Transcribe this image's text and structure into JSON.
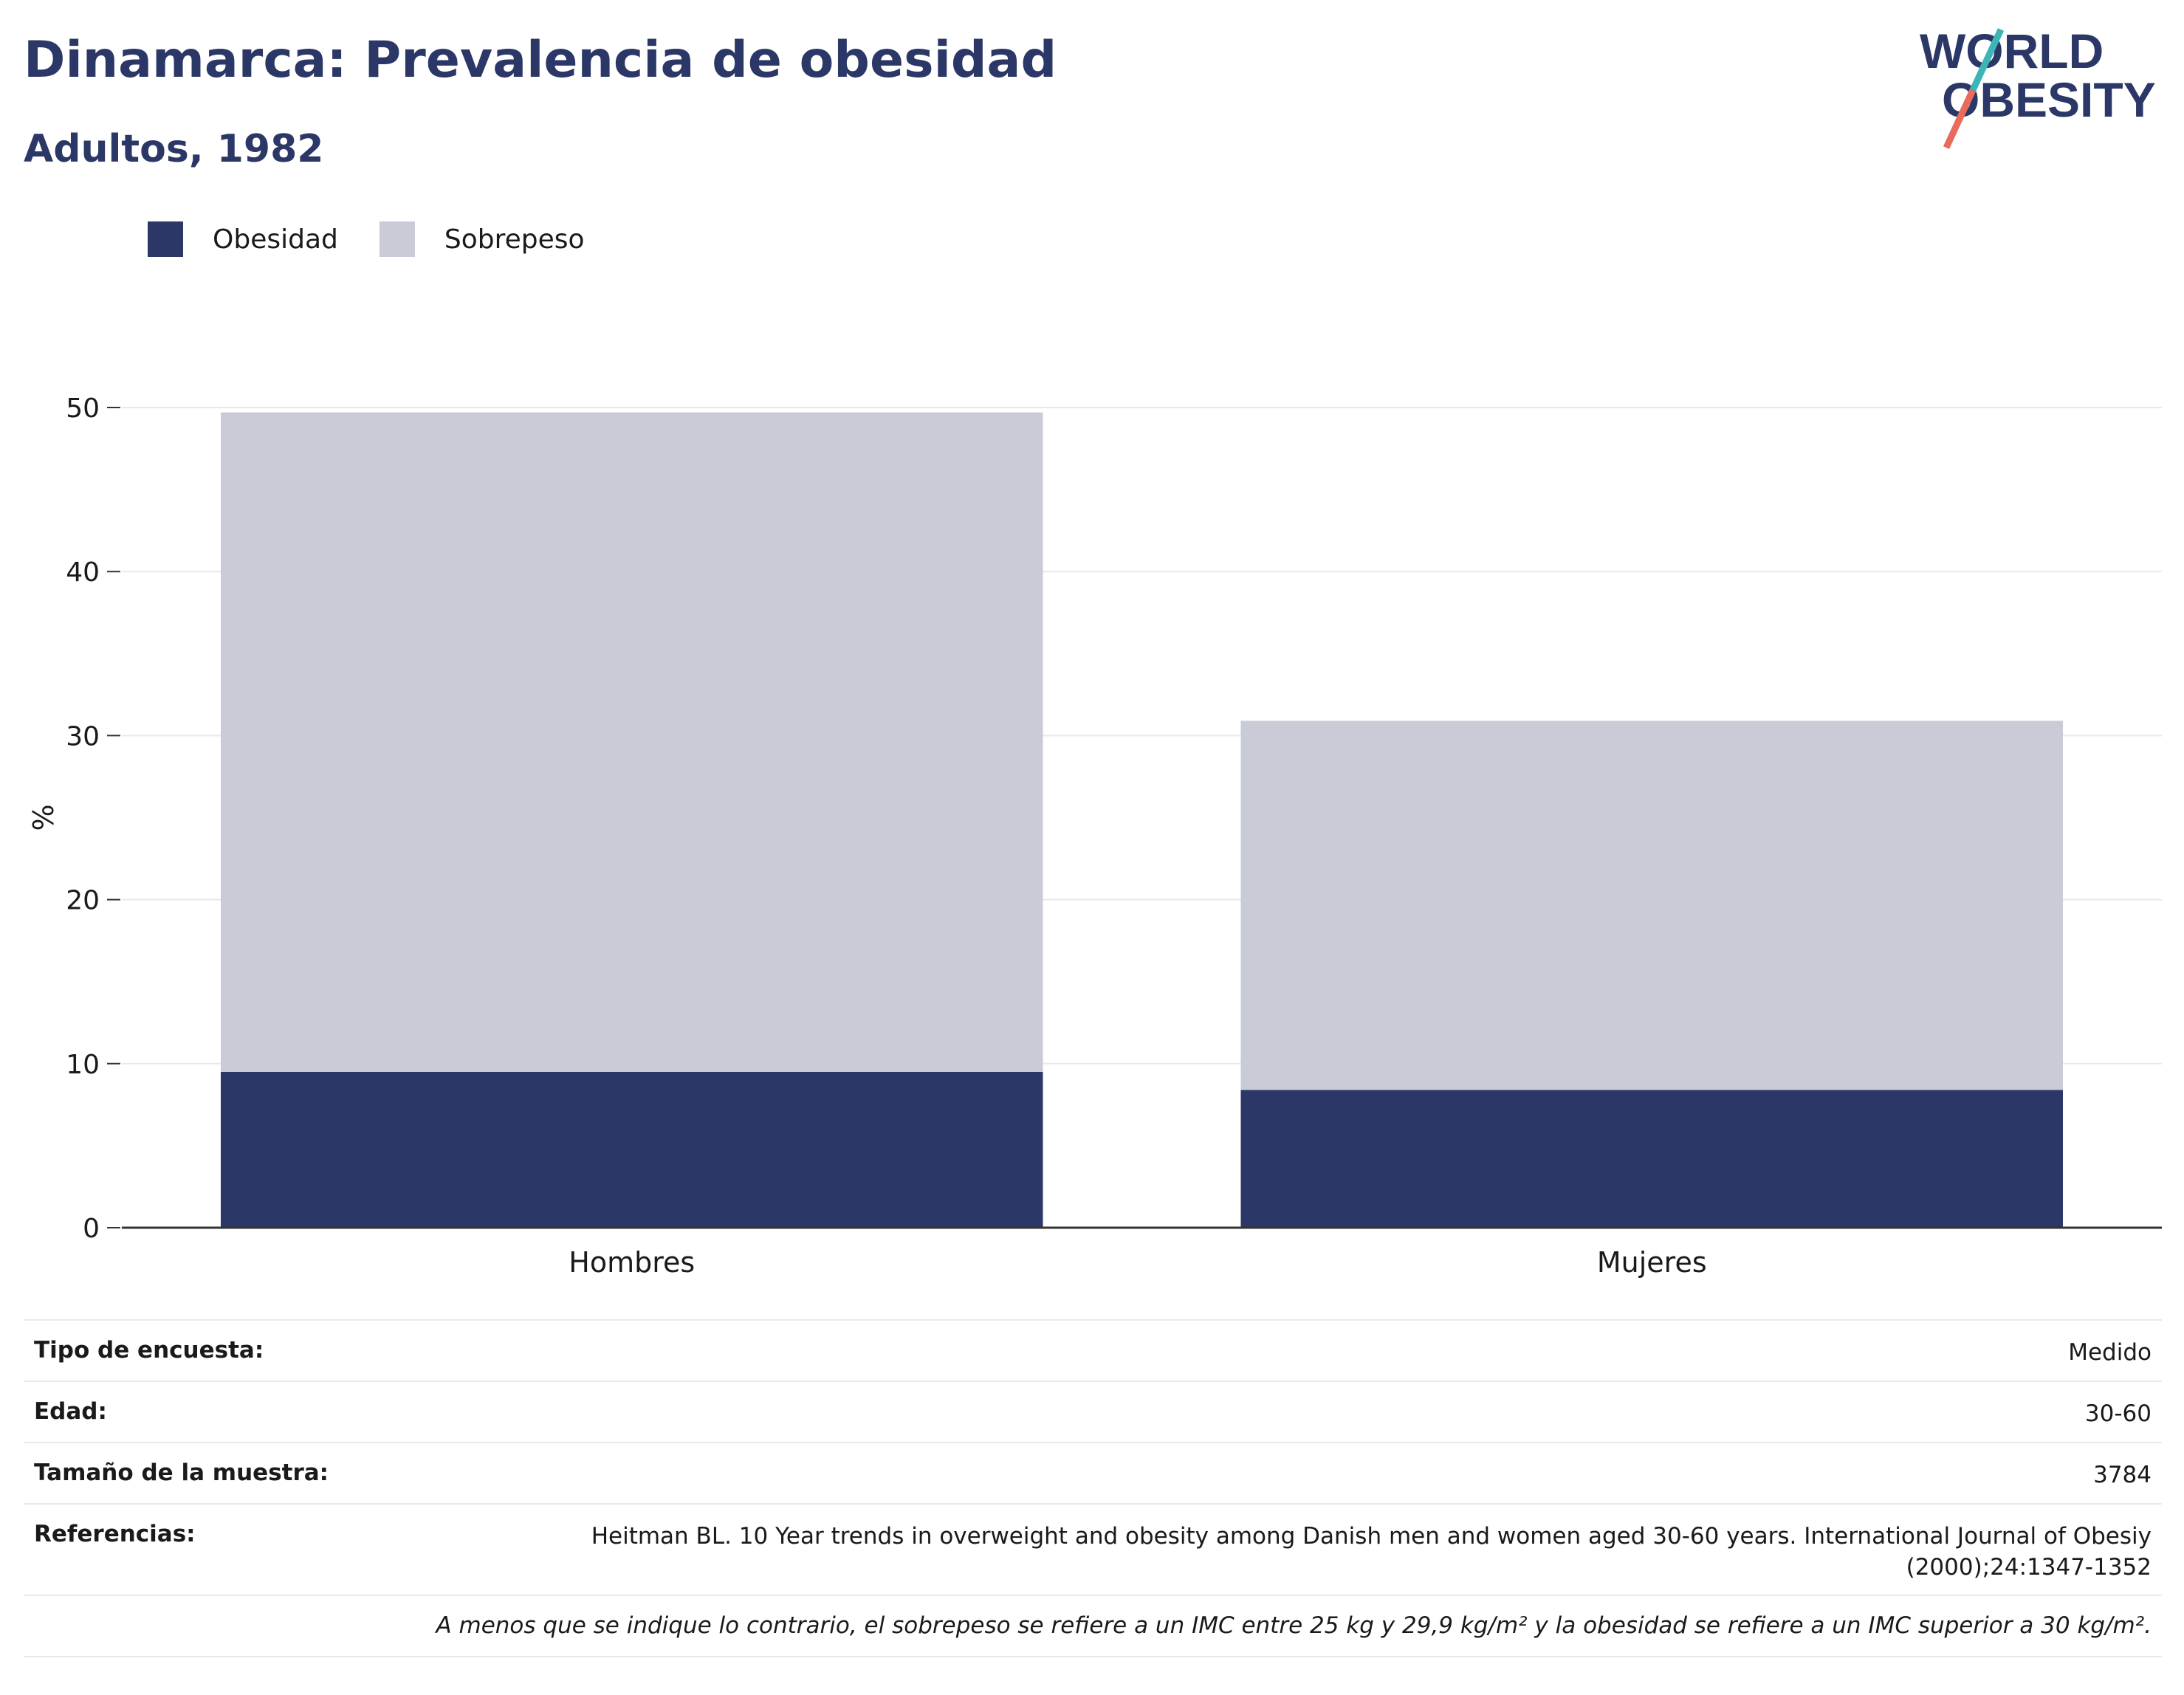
{
  "header": {
    "title": "Dinamarca: Prevalencia de obesidad",
    "subtitle": "Adultos, 1982"
  },
  "logo": {
    "line1": "WORLD",
    "line2": "OBESITY",
    "colors": {
      "text": "#2b3766",
      "slash_top": "#3bb5b5",
      "slash_bottom": "#e86b5c"
    }
  },
  "legend": [
    {
      "label": "Obesidad",
      "color": "#2b3766"
    },
    {
      "label": "Sobrepeso",
      "color": "#c9cbd7"
    }
  ],
  "chart_data": {
    "type": "bar",
    "stacked": true,
    "categories": [
      "Hombres",
      "Mujeres"
    ],
    "series": [
      {
        "name": "Obesidad",
        "color": "#2b3766",
        "values": [
          9.5,
          8.4
        ]
      },
      {
        "name": "Sobrepeso",
        "color": "#c9cbd7",
        "values": [
          40.2,
          22.5
        ]
      }
    ],
    "ylabel": "%",
    "ylim": [
      0,
      50
    ],
    "yticks": [
      0,
      10,
      20,
      30,
      40,
      50
    ],
    "grid": true,
    "legend_position": "top-left"
  },
  "info": {
    "survey_type": {
      "label": "Tipo de encuesta:",
      "value": "Medido"
    },
    "age": {
      "label": "Edad:",
      "value": "30-60"
    },
    "sample_size": {
      "label": "Tamaño de la muestra:",
      "value": "3784"
    },
    "references": {
      "label": "Referencias:",
      "value": "Heitman BL. 10 Year trends in overweight and obesity among Danish men and women aged 30-60 years. International Journal of Obesiy (2000);24:1347-1352"
    },
    "note": "A menos que se indique lo contrario, el sobrepeso se refiere a un IMC entre 25 kg y 29,9 kg/m² y la obesidad se refiere a un IMC superior a 30 kg/m²."
  }
}
